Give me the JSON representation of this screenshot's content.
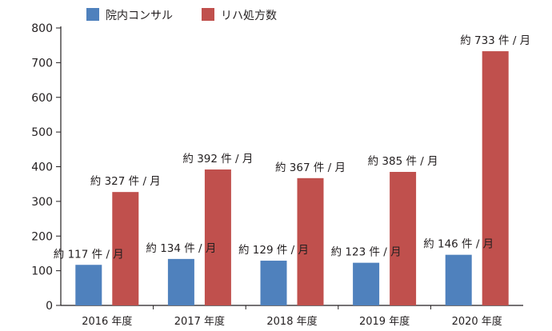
{
  "chart_data": {
    "type": "bar",
    "categories": [
      "2016 年度",
      "2017 年度",
      "2018 年度",
      "2019 年度",
      "2020 年度"
    ],
    "series": [
      {
        "name": "院内コンサル",
        "color": "#4f81bd",
        "values": [
          117,
          134,
          129,
          123,
          146
        ],
        "labels": [
          "約 117 件 / 月",
          "約 134 件 / 月",
          "約 129 件 / 月",
          "約 123 件 / 月",
          "約 146 件 / 月"
        ]
      },
      {
        "name": "リハ処方数",
        "color": "#c0504d",
        "values": [
          327,
          392,
          367,
          385,
          733
        ],
        "labels": [
          "約 327 件 / 月",
          "約 392 件 / 月",
          "約 367 件 / 月",
          "約 385 件 / 月",
          "約 733 件 / 月"
        ]
      }
    ],
    "yticks": [
      "0",
      "100",
      "200",
      "300",
      "400",
      "500",
      "600",
      "700",
      "800"
    ],
    "ylim": [
      0,
      800
    ],
    "grid": false,
    "legend": "top-left"
  }
}
